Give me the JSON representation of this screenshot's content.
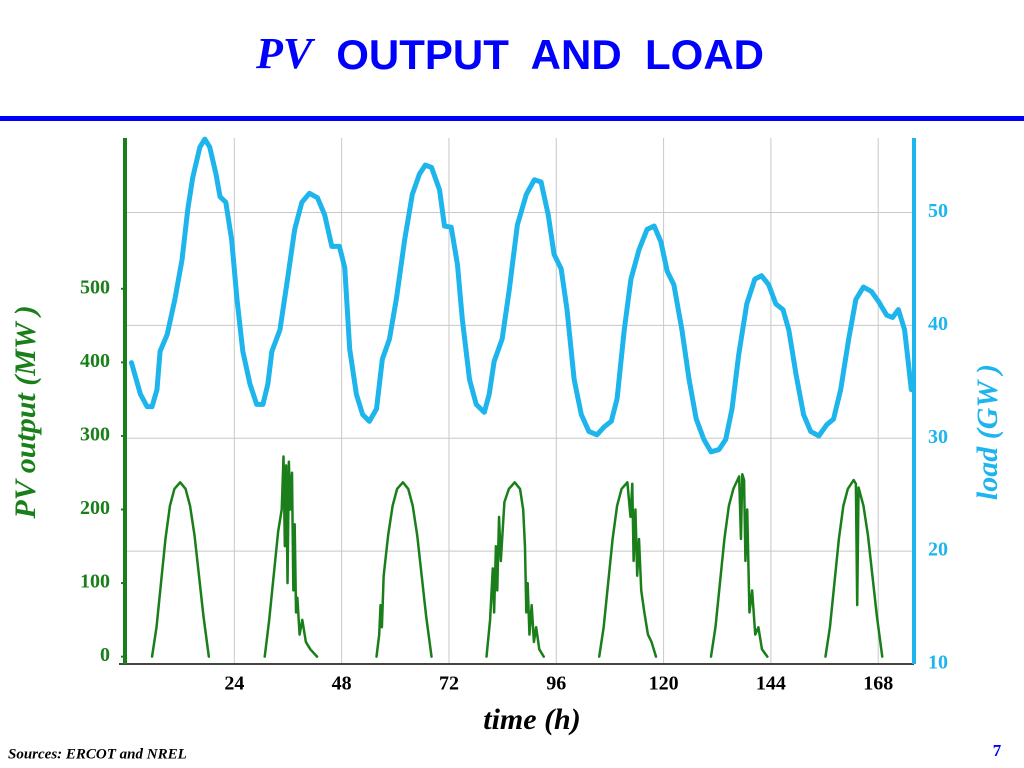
{
  "chart_data": {
    "type": "line",
    "title_prefix": "PV",
    "title": "OUTPUT  AND  LOAD",
    "xlabel": "time (h)",
    "ylabel": "PV output (MW )",
    "y2label": "load (GW )",
    "xlim": [
      0,
      176
    ],
    "xticks": [
      24,
      48,
      72,
      96,
      120,
      144,
      168
    ],
    "ylim": [
      -10,
      705
    ],
    "yticks": [
      0,
      100,
      200,
      300,
      400,
      500
    ],
    "y2lim": [
      10,
      56.6
    ],
    "y2ticks": [
      10,
      20,
      30,
      40,
      50
    ],
    "grid": true,
    "series": [
      {
        "color": "#1a7f1a",
        "axis": "y",
        "x": [
          5.6,
          6.6,
          7.6,
          8.6,
          9.6,
          10.6,
          11.9,
          13.1,
          14.1,
          15.1,
          16.1,
          17.1,
          18.3,
          null,
          30.8,
          31.8,
          32.8,
          33.8,
          34.6,
          35.0,
          35.3,
          35.6,
          35.9,
          36.2,
          36.5,
          36.9,
          37.2,
          37.5,
          37.8,
          38.1,
          38.6,
          39.2,
          40.0,
          41.0,
          42.5,
          null,
          55.8,
          56.4,
          56.7,
          57.0,
          57.4,
          58.4,
          59.4,
          60.4,
          61.7,
          62.9,
          63.9,
          64.9,
          65.9,
          66.9,
          68.1,
          null,
          80.4,
          81.2,
          81.8,
          82.1,
          82.5,
          82.8,
          83.2,
          83.6,
          84.4,
          85.4,
          86.7,
          87.9,
          88.6,
          89.0,
          89.3,
          89.6,
          90.0,
          90.5,
          91.0,
          91.5,
          92.2,
          93.2,
          null,
          105.6,
          106.6,
          107.6,
          108.6,
          109.6,
          110.6,
          111.9,
          112.6,
          113.0,
          113.3,
          113.7,
          114.1,
          114.5,
          115.0,
          115.7,
          116.5,
          117.3,
          118.3,
          null,
          130.6,
          131.6,
          132.6,
          133.6,
          134.6,
          135.6,
          136.9,
          137.3,
          137.6,
          138.0,
          138.3,
          138.7,
          139.2,
          139.8,
          140.5,
          141.2,
          142.0,
          143.2,
          null,
          156.2,
          157.2,
          158.2,
          159.2,
          160.2,
          161.2,
          162.5,
          163.0,
          163.3,
          163.6,
          164.7,
          165.7,
          166.7,
          167.7,
          168.9
        ],
        "values": [
          0,
          40,
          100,
          160,
          205,
          228,
          237,
          228,
          205,
          165,
          110,
          55,
          0,
          null,
          0,
          50,
          110,
          170,
          200,
          272,
          150,
          260,
          100,
          265,
          200,
          250,
          90,
          180,
          60,
          80,
          30,
          50,
          20,
          10,
          0,
          null,
          0,
          30,
          70,
          40,
          110,
          165,
          205,
          228,
          237,
          228,
          205,
          165,
          110,
          55,
          0,
          null,
          0,
          50,
          120,
          60,
          150,
          90,
          190,
          130,
          210,
          228,
          237,
          228,
          200,
          150,
          60,
          100,
          30,
          70,
          20,
          40,
          10,
          0,
          null,
          0,
          40,
          100,
          160,
          205,
          228,
          237,
          190,
          235,
          130,
          200,
          110,
          160,
          90,
          60,
          30,
          20,
          0,
          null,
          0,
          40,
          100,
          160,
          205,
          228,
          245,
          160,
          248,
          240,
          130,
          200,
          60,
          90,
          30,
          40,
          10,
          0,
          null,
          0,
          40,
          100,
          160,
          205,
          228,
          240,
          235,
          70,
          230,
          205,
          165,
          110,
          55,
          0
        ]
      },
      {
        "color": "#1eb4ec",
        "axis": "y2",
        "x": [
          1,
          3,
          4.5,
          5.6,
          6.7,
          7.4,
          9,
          10.7,
          12.3,
          13.6,
          14.7,
          16.3,
          17.4,
          18.5,
          19.9,
          20.8,
          22.1,
          23.4,
          24.6,
          25.9,
          27.5,
          29,
          30.4,
          31.5,
          32.4,
          34.2,
          35.9,
          37.5,
          39.1,
          40.8,
          42.6,
          44.2,
          45.8,
          47.5,
          48.7,
          49.8,
          51.3,
          52.7,
          54.2,
          55.8,
          57.1,
          58.7,
          60.3,
          62.1,
          63.8,
          65.4,
          66.7,
          68.1,
          69.9,
          71,
          72.5,
          73.9,
          75,
          76.6,
          78.1,
          79.9,
          81,
          82.1,
          83.9,
          85.5,
          87.3,
          89.3,
          91.1,
          92.6,
          94.2,
          95.5,
          97.1,
          98.4,
          100,
          101.6,
          103.3,
          105.1,
          106.7,
          108.3,
          109.6,
          111.2,
          112.7,
          114.5,
          116.3,
          117.9,
          119.4,
          120.8,
          122.3,
          124.1,
          125.7,
          127.3,
          129,
          130.6,
          132.4,
          133.9,
          135.3,
          136.8,
          138.6,
          140.4,
          141.9,
          143.5,
          145.1,
          146.7,
          148,
          149.6,
          151.3,
          152.9,
          154.7,
          156.5,
          158,
          159.6,
          161.4,
          163,
          164.7,
          166.5,
          168.1,
          169.9,
          171.2,
          172.5,
          173.9,
          175.4
        ],
        "values": [
          36.7,
          33.9,
          32.8,
          32.8,
          34.3,
          37.7,
          39.2,
          42.3,
          45.8,
          50.3,
          53.1,
          55.8,
          56.5,
          55.8,
          53.4,
          51.4,
          50.9,
          47.6,
          42.3,
          37.7,
          34.8,
          33.0,
          33.0,
          34.8,
          37.7,
          39.6,
          44.1,
          48.5,
          50.9,
          51.7,
          51.3,
          49.8,
          47.0,
          47.0,
          45.1,
          37.9,
          33.9,
          32.1,
          31.5,
          32.6,
          37.0,
          38.8,
          42.5,
          47.6,
          51.6,
          53.4,
          54.2,
          54.0,
          52.0,
          48.8,
          48.7,
          45.4,
          40.5,
          35.2,
          33.0,
          32.3,
          33.9,
          36.8,
          38.8,
          43.2,
          48.9,
          51.6,
          52.9,
          52.7,
          49.8,
          46.3,
          45.0,
          41.4,
          35.2,
          32.1,
          30.6,
          30.3,
          31.0,
          31.5,
          33.5,
          39.6,
          44.1,
          46.7,
          48.5,
          48.8,
          47.4,
          44.8,
          43.6,
          39.6,
          35.2,
          31.7,
          29.9,
          28.8,
          29.0,
          29.9,
          32.6,
          37.4,
          41.9,
          44.1,
          44.4,
          43.6,
          41.9,
          41.4,
          39.6,
          35.7,
          32.1,
          30.6,
          30.2,
          31.2,
          31.7,
          34.3,
          38.8,
          42.3,
          43.4,
          43.0,
          42.1,
          40.9,
          40.7,
          41.4,
          39.6,
          34.3
        ]
      }
    ]
  },
  "source": "Sources: ERCOT and NREL",
  "page_number": "7"
}
